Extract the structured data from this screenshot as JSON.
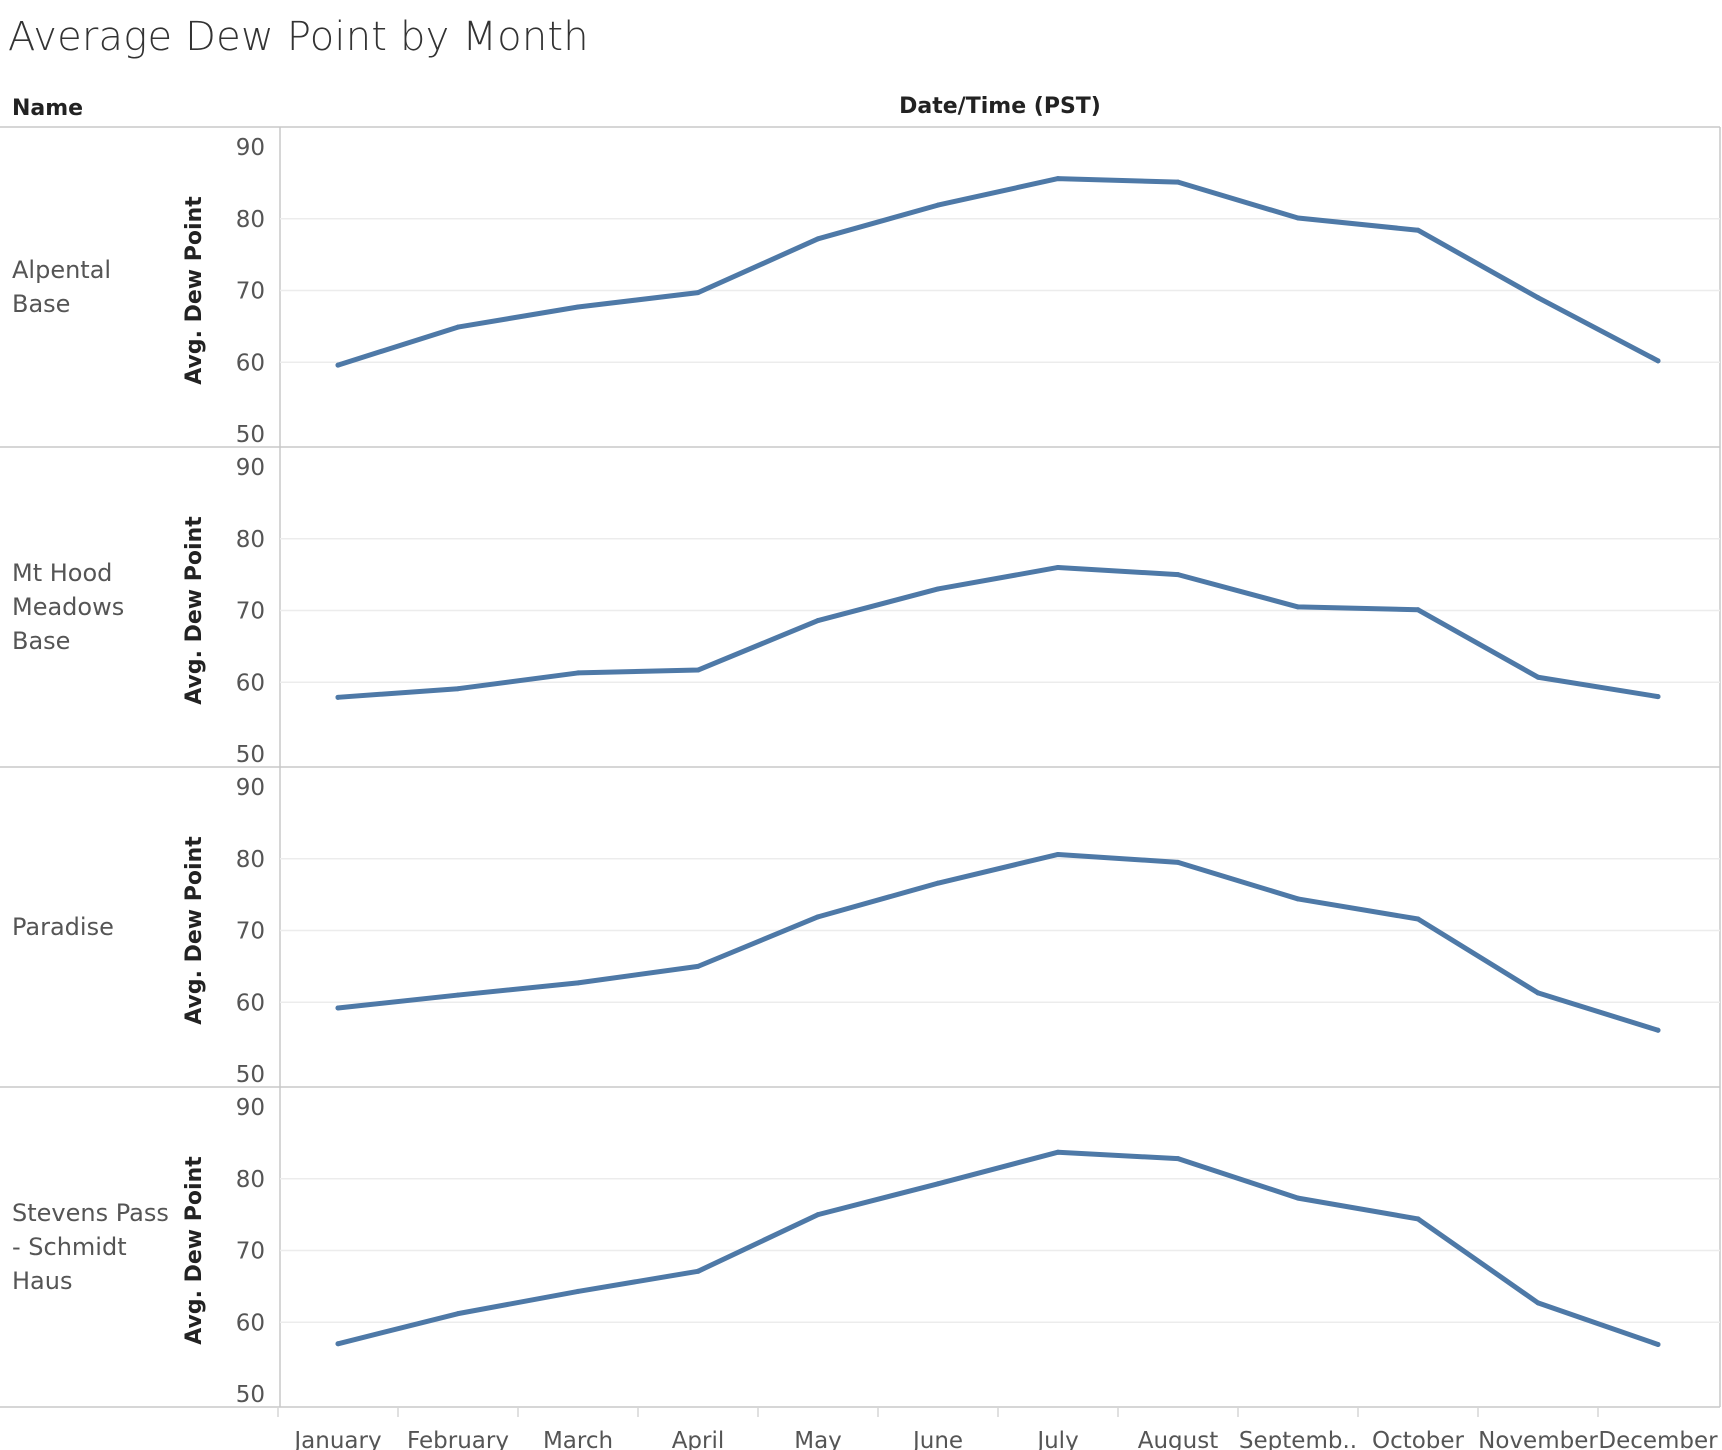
{
  "title": "Average Dew Point by Month",
  "row_header": "Name",
  "column_header": "Date/Time (PST)",
  "chart_data": {
    "type": "line",
    "title": "Average Dew Point by Month",
    "xlabel": "Date/Time (PST)",
    "ylabel": "Avg. Dew Point",
    "ylim": [
      50,
      90
    ],
    "yticks": [
      50,
      60,
      70,
      80,
      90
    ],
    "grid": true,
    "line_color": "#4e79a7",
    "categories": [
      "January",
      "February",
      "March",
      "April",
      "May",
      "June",
      "July",
      "August",
      "Septemb..",
      "October",
      "November",
      "December"
    ],
    "panels": [
      {
        "name_lines": [
          "Alpental",
          "Base"
        ],
        "values": [
          59.6,
          64.9,
          67.7,
          69.7,
          77.2,
          81.9,
          85.6,
          85.1,
          80.1,
          78.4,
          69.0,
          60.2
        ]
      },
      {
        "name_lines": [
          "Mt Hood",
          "Meadows",
          "Base"
        ],
        "values": [
          57.9,
          59.1,
          61.3,
          61.7,
          68.6,
          73.0,
          76.0,
          75.0,
          70.5,
          70.1,
          60.7,
          58.0
        ]
      },
      {
        "name_lines": [
          "Paradise"
        ],
        "values": [
          59.2,
          61.0,
          62.7,
          65.0,
          71.9,
          76.6,
          80.6,
          79.5,
          74.4,
          71.6,
          61.3,
          56.1
        ]
      },
      {
        "name_lines": [
          "Stevens Pass",
          "- Schmidt",
          "Haus"
        ],
        "values": [
          57.0,
          61.2,
          64.3,
          67.1,
          75.0,
          79.3,
          83.7,
          82.8,
          77.3,
          74.4,
          62.7,
          56.9
        ]
      }
    ]
  }
}
